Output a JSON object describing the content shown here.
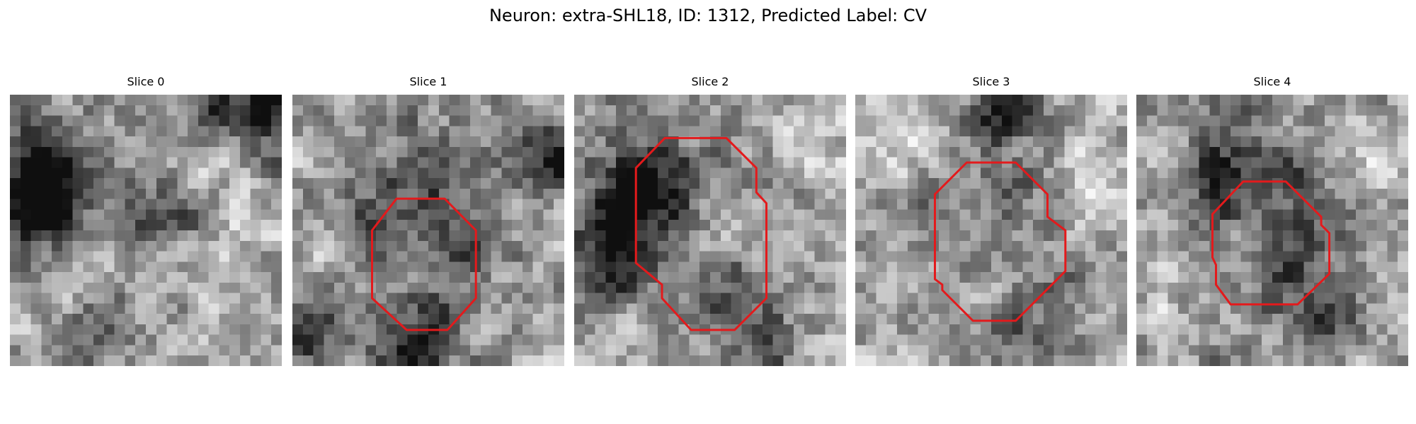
{
  "figure": {
    "title": "Neuron: extra-SHL18, ID: 1312, Predicted Label: CV"
  },
  "grid_size": 26,
  "panels": [
    {
      "label": "Slice 0",
      "seed": 11,
      "blobs": [
        [
          0.12,
          0.3,
          0.14,
          -0.55
        ],
        [
          0.1,
          0.42,
          0.1,
          -0.45
        ],
        [
          0.93,
          0.05,
          0.12,
          -0.45
        ],
        [
          0.72,
          0.08,
          0.08,
          -0.35
        ],
        [
          0.35,
          0.85,
          0.1,
          -0.35
        ],
        [
          0.45,
          0.45,
          0.08,
          -0.3
        ],
        [
          0.62,
          0.4,
          0.1,
          -0.25
        ],
        [
          0.7,
          0.22,
          0.12,
          0.2
        ],
        [
          0.85,
          0.6,
          0.1,
          0.15
        ],
        [
          0.2,
          0.7,
          0.08,
          0.15
        ]
      ],
      "contour": null
    },
    {
      "label": "Slice 1",
      "seed": 23,
      "blobs": [
        [
          0.95,
          0.2,
          0.09,
          -0.5
        ],
        [
          0.48,
          0.3,
          0.14,
          -0.3
        ],
        [
          0.3,
          0.48,
          0.09,
          -0.3
        ],
        [
          0.6,
          0.58,
          0.09,
          -0.3
        ],
        [
          0.05,
          0.85,
          0.1,
          -0.45
        ],
        [
          0.4,
          0.95,
          0.12,
          -0.45
        ],
        [
          0.55,
          0.8,
          0.08,
          -0.2
        ],
        [
          0.12,
          0.6,
          0.1,
          0.15
        ]
      ],
      "contour": [
        [
          0.48,
          0.383
        ],
        [
          0.56,
          0.383
        ],
        [
          0.675,
          0.5
        ],
        [
          0.675,
          0.75
        ],
        [
          0.57,
          0.867
        ],
        [
          0.42,
          0.867
        ],
        [
          0.293,
          0.75
        ],
        [
          0.293,
          0.5
        ],
        [
          0.383,
          0.383
        ]
      ]
    },
    {
      "label": "Slice 2",
      "seed": 37,
      "blobs": [
        [
          0.2,
          0.4,
          0.14,
          -0.5
        ],
        [
          0.15,
          0.6,
          0.1,
          -0.45
        ],
        [
          0.35,
          0.3,
          0.12,
          -0.3
        ],
        [
          0.7,
          0.35,
          0.1,
          -0.2
        ],
        [
          0.55,
          0.7,
          0.1,
          -0.25
        ],
        [
          0.7,
          0.92,
          0.08,
          -0.4
        ],
        [
          0.9,
          0.25,
          0.12,
          0.2
        ],
        [
          0.55,
          0.45,
          0.1,
          0.15
        ]
      ],
      "contour": [
        [
          0.43,
          0.16
        ],
        [
          0.56,
          0.16
        ],
        [
          0.67,
          0.27
        ],
        [
          0.67,
          0.36
        ],
        [
          0.707,
          0.4
        ],
        [
          0.707,
          0.75
        ],
        [
          0.59,
          0.867
        ],
        [
          0.43,
          0.867
        ],
        [
          0.323,
          0.75
        ],
        [
          0.323,
          0.7
        ],
        [
          0.227,
          0.62
        ],
        [
          0.227,
          0.27
        ],
        [
          0.333,
          0.16
        ]
      ]
    },
    {
      "label": "Slice 3",
      "seed": 51,
      "blobs": [
        [
          0.55,
          0.05,
          0.08,
          -0.5
        ],
        [
          0.55,
          0.3,
          0.1,
          -0.25
        ],
        [
          0.3,
          0.45,
          0.08,
          -0.2
        ],
        [
          0.75,
          0.65,
          0.08,
          -0.2
        ],
        [
          0.6,
          0.9,
          0.1,
          -0.3
        ],
        [
          0.9,
          0.35,
          0.12,
          0.2
        ],
        [
          0.15,
          0.2,
          0.12,
          0.15
        ]
      ],
      "contour": [
        [
          0.46,
          0.25
        ],
        [
          0.59,
          0.25
        ],
        [
          0.707,
          0.367
        ],
        [
          0.707,
          0.45
        ],
        [
          0.773,
          0.5
        ],
        [
          0.773,
          0.65
        ],
        [
          0.59,
          0.833
        ],
        [
          0.433,
          0.833
        ],
        [
          0.32,
          0.72
        ],
        [
          0.32,
          0.7
        ],
        [
          0.293,
          0.68
        ],
        [
          0.293,
          0.367
        ],
        [
          0.41,
          0.25
        ]
      ]
    },
    {
      "label": "Slice 4",
      "seed": 67,
      "blobs": [
        [
          0.3,
          0.35,
          0.1,
          -0.4
        ],
        [
          0.5,
          0.3,
          0.1,
          -0.3
        ],
        [
          0.7,
          0.45,
          0.08,
          -0.3
        ],
        [
          0.55,
          0.68,
          0.09,
          -0.3
        ],
        [
          0.7,
          0.82,
          0.08,
          -0.45
        ],
        [
          0.35,
          0.15,
          0.1,
          -0.2
        ],
        [
          0.1,
          0.7,
          0.1,
          0.15
        ],
        [
          0.85,
          0.2,
          0.1,
          0.15
        ]
      ],
      "contour": [
        [
          0.4,
          0.32
        ],
        [
          0.55,
          0.32
        ],
        [
          0.68,
          0.45
        ],
        [
          0.68,
          0.48
        ],
        [
          0.71,
          0.51
        ],
        [
          0.71,
          0.66
        ],
        [
          0.593,
          0.773
        ],
        [
          0.347,
          0.773
        ],
        [
          0.293,
          0.7
        ],
        [
          0.293,
          0.627
        ],
        [
          0.28,
          0.6
        ],
        [
          0.28,
          0.44
        ],
        [
          0.393,
          0.32
        ]
      ]
    }
  ],
  "contour_color": "#e31a1c"
}
